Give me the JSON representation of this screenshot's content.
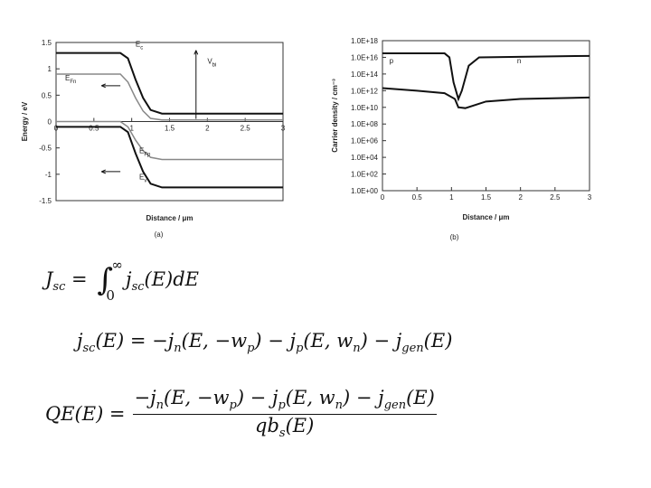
{
  "chart_data": [
    {
      "type": "line",
      "xlabel": "Distance / μm",
      "ylabel": "Energy / eV",
      "panel": "(a)",
      "xlim": [
        0,
        3
      ],
      "xticks": [
        0,
        0.5,
        1,
        1.5,
        2,
        2.5,
        3
      ],
      "ylim": [
        -1.5,
        1.5
      ],
      "yticks": [
        -1.5,
        -1,
        -0.5,
        0,
        0.5,
        1,
        1.5
      ],
      "x": [
        0,
        0.85,
        0.95,
        1.05,
        1.15,
        1.25,
        1.4,
        3
      ],
      "series": [
        {
          "color": "#111111",
          "values": [
            1.3,
            1.3,
            1.2,
            0.8,
            0.45,
            0.22,
            0.15,
            0.15
          ]
        },
        {
          "color": "#888888",
          "values": [
            0.9,
            0.9,
            0.75,
            0.45,
            0.2,
            0.06,
            0.03,
            0.03
          ]
        },
        {
          "color": "#888888",
          "values": [
            0.0,
            0.0,
            -0.1,
            -0.35,
            -0.55,
            -0.68,
            -0.72,
            -0.72
          ]
        },
        {
          "color": "#111111",
          "values": [
            -0.1,
            -0.1,
            -0.2,
            -0.6,
            -0.95,
            -1.18,
            -1.25,
            -1.25
          ]
        }
      ],
      "annotations": [
        [
          "E",
          "c"
        ],
        [
          "E",
          "Fn"
        ],
        [
          "E",
          "Fp"
        ],
        [
          "E",
          "v"
        ],
        [
          "V",
          "bi"
        ]
      ]
    },
    {
      "type": "line",
      "xlabel": "Distance / μm",
      "ylabel": "Carrier density / cm⁻³",
      "panel": "(b)",
      "log_y": true,
      "xlim": [
        0,
        3
      ],
      "xticks": [
        0,
        0.5,
        1,
        1.5,
        2,
        2.5,
        3
      ],
      "ylim": [
        1,
        1e+18
      ],
      "yticks": [
        {
          "value": 1,
          "label": "1.0E+00"
        },
        {
          "value": 100,
          "label": "1.0E+02"
        },
        {
          "value": 10000,
          "label": "1.0E+04"
        },
        {
          "value": 1000000,
          "label": "1.0E+06"
        },
        {
          "value": 100000000,
          "label": "1.0E+08"
        },
        {
          "value": 10000000000,
          "label": "1.0E+10"
        },
        {
          "value": 1000000000000,
          "label": "1.0E+12"
        },
        {
          "value": 100000000000000,
          "label": "1.0E+14"
        },
        {
          "value": 10000000000000000,
          "label": "1.0E+16"
        },
        {
          "value": 1000000000000000000,
          "label": "1.0E+18"
        }
      ],
      "series": [
        {
          "color": "#111111",
          "x": [
            0,
            0.9,
            0.97,
            1.03,
            1.1,
            1.15,
            1.25,
            1.4,
            3
          ],
          "values": [
            3e+16,
            3e+16,
            1e+16,
            10000000000000.0,
            100000000000.0,
            1000000000000.0,
            1000000000000000.0,
            1e+16,
            1.5e+16
          ]
        },
        {
          "color": "#111111",
          "x": [
            0,
            0.5,
            0.9,
            1.05,
            1.1,
            1.2,
            1.5,
            2,
            3
          ],
          "values": [
            2000000000000.0,
            1000000000000.0,
            500000000000.0,
            100000000000.0,
            10000000000.0,
            8000000000.0,
            50000000000.0,
            100000000000.0,
            150000000000.0
          ]
        }
      ],
      "annotations": [
        [
          "p"
        ],
        [
          "n"
        ]
      ]
    }
  ],
  "equations": [
    {
      "lhs": [
        "J",
        "sc",
        " = "
      ],
      "integral": "∫",
      "lower": "0",
      "upper": "∞",
      "rhs": [
        "j",
        "sc",
        "(E)dE"
      ]
    },
    {
      "tokens": [
        "j",
        "sc",
        "(E) = −j",
        "n",
        "(E, −w",
        "p",
        ") − j",
        "p",
        "(E, w",
        "n",
        ") − j",
        "gen",
        "(E)"
      ]
    },
    {
      "lhs": [
        "QE(E) = "
      ],
      "numerator": [
        "−j",
        "n",
        "(E, −w",
        "p",
        ") − j",
        "p",
        "(E, w",
        "n",
        ") − j",
        "gen",
        "(E)"
      ],
      "denominator": [
        "qb",
        "s",
        "(E)"
      ]
    }
  ]
}
